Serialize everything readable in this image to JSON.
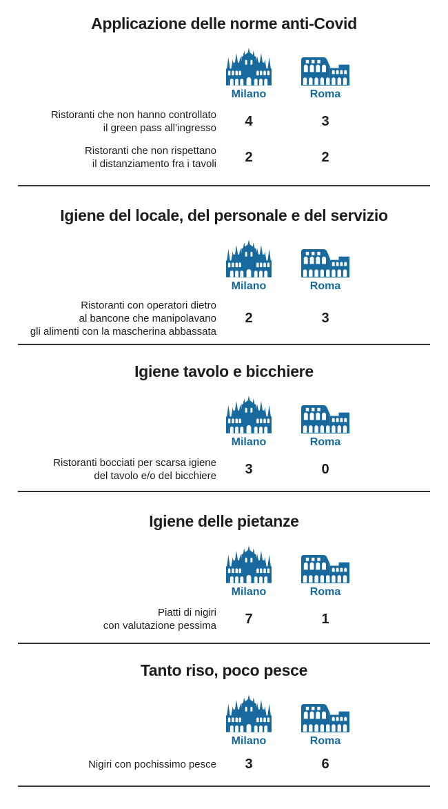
{
  "colors": {
    "accent": "#17699e",
    "city": "#15689e",
    "text": "#1d1d1b",
    "divider": "#333333",
    "background": "#ffffff"
  },
  "cities": [
    {
      "name": "Milano",
      "icon": "duomo-icon"
    },
    {
      "name": "Roma",
      "icon": "colosseum-icon"
    }
  ],
  "sections": [
    {
      "title": "Applicazione delle norme anti-Covid",
      "rows": [
        {
          "label_lines": [
            "Ristoranti che non hanno controllato",
            "il green pass all’ingresso"
          ],
          "milano": "4",
          "roma": "3"
        },
        {
          "label_lines": [
            "Ristoranti che non rispettano",
            "il distanziamento fra i tavoli"
          ],
          "milano": "2",
          "roma": "2"
        }
      ]
    },
    {
      "title": "Igiene del locale, del personale e del servizio",
      "rows": [
        {
          "label_lines": [
            "Ristoranti con operatori dietro",
            "al bancone che manipolavano",
            "gli alimenti con la mascherina abbassata"
          ],
          "milano": "2",
          "roma": "3"
        }
      ]
    },
    {
      "title": "Igiene tavolo e bicchiere",
      "rows": [
        {
          "label_lines": [
            "Ristoranti bocciati per scarsa igiene",
            "del tavolo e/o del bicchiere"
          ],
          "milano": "3",
          "roma": "0"
        }
      ]
    },
    {
      "title": "Igiene delle pietanze",
      "rows": [
        {
          "label_lines": [
            "Piatti di nigiri",
            "con valutazione pessima"
          ],
          "milano": "7",
          "roma": "1"
        }
      ]
    },
    {
      "title": "Tanto riso, poco pesce",
      "rows": [
        {
          "label_lines": [
            "Nigiri con pochissimo pesce"
          ],
          "milano": "3",
          "roma": "6"
        }
      ]
    }
  ],
  "chart_data": [
    {
      "type": "table",
      "title": "Applicazione delle norme anti-Covid",
      "categories": [
        "Milano",
        "Roma"
      ],
      "rows": [
        {
          "label": "Ristoranti che non hanno controllato il green pass all’ingresso",
          "values": [
            4,
            3
          ]
        },
        {
          "label": "Ristoranti che non rispettano il distanziamento fra i tavoli",
          "values": [
            2,
            2
          ]
        }
      ]
    },
    {
      "type": "table",
      "title": "Igiene del locale, del personale e del servizio",
      "categories": [
        "Milano",
        "Roma"
      ],
      "rows": [
        {
          "label": "Ristoranti con operatori dietro al bancone che manipolavano gli alimenti con la mascherina abbassata",
          "values": [
            2,
            3
          ]
        }
      ]
    },
    {
      "type": "table",
      "title": "Igiene tavolo e bicchiere",
      "categories": [
        "Milano",
        "Roma"
      ],
      "rows": [
        {
          "label": "Ristoranti bocciati per scarsa igiene del tavolo e/o del bicchiere",
          "values": [
            3,
            0
          ]
        }
      ]
    },
    {
      "type": "table",
      "title": "Igiene delle pietanze",
      "categories": [
        "Milano",
        "Roma"
      ],
      "rows": [
        {
          "label": "Piatti di nigiri con valutazione pessima",
          "values": [
            7,
            1
          ]
        }
      ]
    },
    {
      "type": "table",
      "title": "Tanto riso, poco pesce",
      "categories": [
        "Milano",
        "Roma"
      ],
      "rows": [
        {
          "label": "Nigiri con pochissimo pesce",
          "values": [
            3,
            6
          ]
        }
      ]
    }
  ]
}
